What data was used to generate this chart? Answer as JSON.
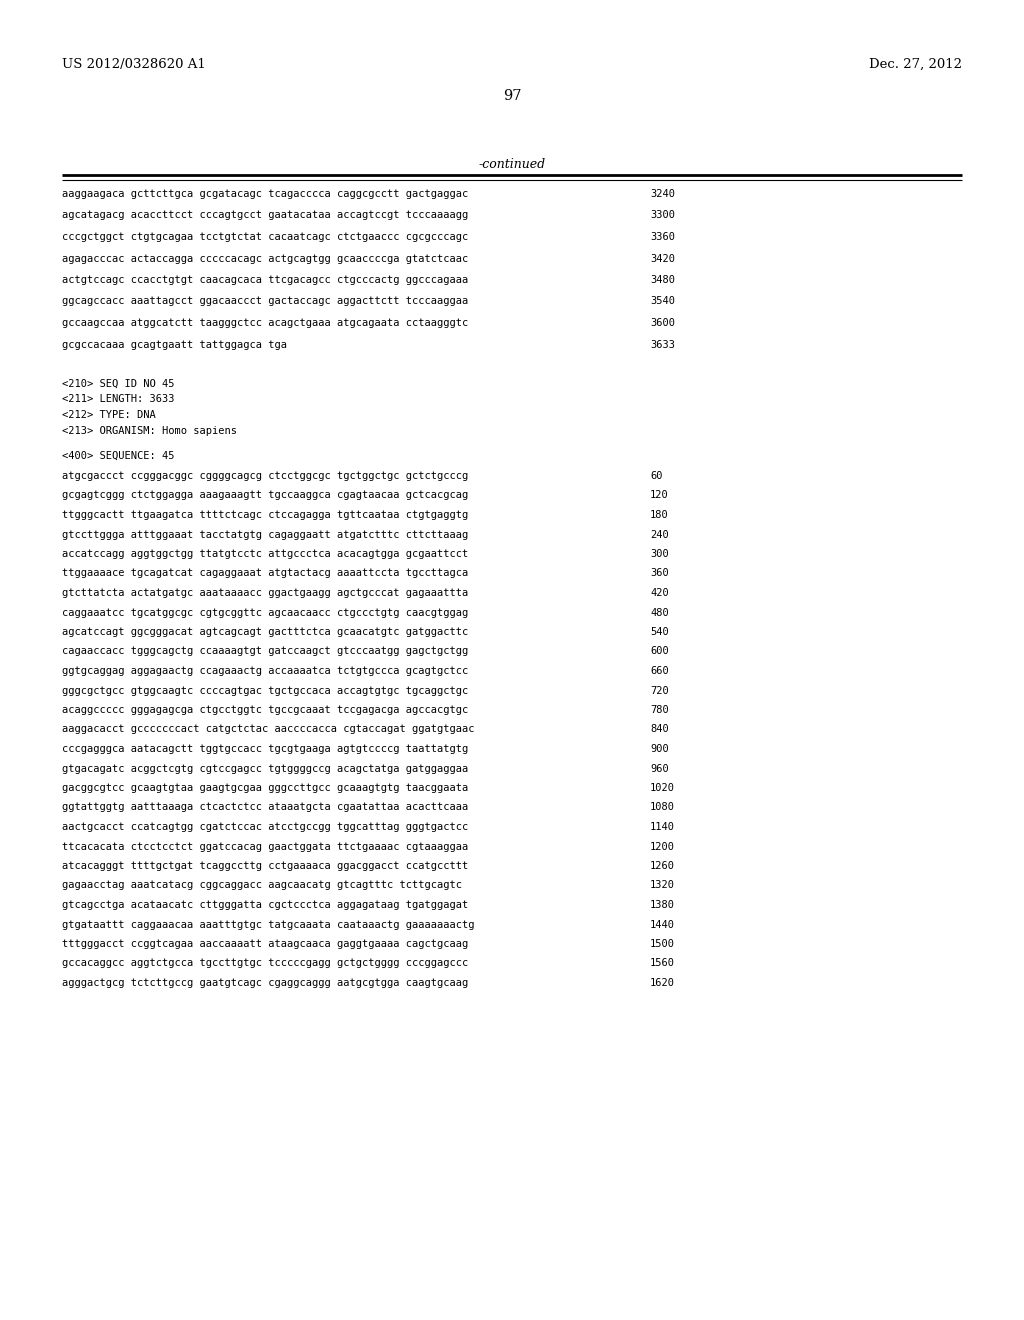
{
  "header_left": "US 2012/0328620 A1",
  "header_right": "Dec. 27, 2012",
  "page_number": "97",
  "continued_label": "-continued",
  "background_color": "#ffffff",
  "text_color": "#000000",
  "mono_font_size": 7.5,
  "header_font_size": 9.5,
  "page_num_font_size": 10.5,
  "section_top": [
    {
      "text": "aaggaagaca gcttcttgca gcgatacagc tcagacccca caggcgcctt gactgaggac",
      "num": "3240"
    },
    {
      "text": "agcatagacg acaccttcct cccagtgcct gaatacataa accagtccgt tcccaaaagg",
      "num": "3300"
    },
    {
      "text": "cccgctggct ctgtgcagaa tcctgtctat cacaatcagc ctctgaaccc cgcgcccagc",
      "num": "3360"
    },
    {
      "text": "agagacccac actaccagga cccccacagc actgcagtgg gcaaccccga gtatctcaac",
      "num": "3420"
    },
    {
      "text": "actgtccagc ccacctgtgt caacagcaca ttcgacagcc ctgcccactg ggcccagaaa",
      "num": "3480"
    },
    {
      "text": "ggcagccacc aaattagcct ggacaaccct gactaccagc aggacttctt tcccaaggaa",
      "num": "3540"
    },
    {
      "text": "gccaagccaa atggcatctt taagggctcc acagctgaaa atgcagaata cctaagggtc",
      "num": "3600"
    },
    {
      "text": "gcgccacaaa gcagtgaatt tattggagca tga",
      "num": "3633"
    }
  ],
  "meta_lines": [
    "<210> SEQ ID NO 45",
    "<211> LENGTH: 3633",
    "<212> TYPE: DNA",
    "<213> ORGANISM: Homo sapiens"
  ],
  "sequence_label": "<400> SEQUENCE: 45",
  "sequence_lines": [
    {
      "text": "atgcgaccct ccgggacggc cggggcagcg ctcctggcgc tgctggctgc gctctgcccg",
      "num": "60"
    },
    {
      "text": "gcgagtcggg ctctggagga aaagaaagtt tgccaaggca cgagtaacaa gctcacgcag",
      "num": "120"
    },
    {
      "text": "ttgggcactt ttgaagatca ttttctcagc ctccagagga tgttcaataa ctgtgaggtg",
      "num": "180"
    },
    {
      "text": "gtccttggga atttggaaat tacctatgtg cagaggaatt atgatctttc cttcttaaag",
      "num": "240"
    },
    {
      "text": "accatccagg aggtggctgg ttatgtcctc attgccctca acacagtgga gcgaattcct",
      "num": "300"
    },
    {
      "text": "ttggaaaace tgcagatcat cagaggaaat atgtactacg aaaattccta tgccttagca",
      "num": "360"
    },
    {
      "text": "gtcttatcta actatgatgc aaataaaacc ggactgaagg agctgcccat gagaaattta",
      "num": "420"
    },
    {
      "text": "caggaaatcc tgcatggcgc cgtgcggttc agcaacaacc ctgccctgtg caacgtggag",
      "num": "480"
    },
    {
      "text": "agcatccagt ggcgggacat agtcagcagt gactttctca gcaacatgtc gatggacttc",
      "num": "540"
    },
    {
      "text": "cagaaccacc tgggcagctg ccaaaagtgt gatccaagct gtcccaatgg gagctgctgg",
      "num": "600"
    },
    {
      "text": "ggtgcaggag aggagaactg ccagaaactg accaaaatca tctgtgccca gcagtgctcc",
      "num": "660"
    },
    {
      "text": "gggcgctgcc gtggcaagtc ccccagtgac tgctgccaca accagtgtgc tgcaggctgc",
      "num": "720"
    },
    {
      "text": "acaggccccc gggagagcga ctgcctggtc tgccgcaaat tccgagacga agccacgtgc",
      "num": "780"
    },
    {
      "text": "aaggacacct gcccccccact catgctctac aaccccacca cgtaccagat ggatgtgaac",
      "num": "840"
    },
    {
      "text": "cccgagggca aatacagctt tggtgccacc tgcgtgaaga agtgtccccg taattatgtg",
      "num": "900"
    },
    {
      "text": "gtgacagatc acggctcgtg cgtccgagcc tgtggggccg acagctatga gatggaggaa",
      "num": "960"
    },
    {
      "text": "gacggcgtcc gcaagtgtaa gaagtgcgaa gggccttgcc gcaaagtgtg taacggaata",
      "num": "1020"
    },
    {
      "text": "ggtattggtg aatttaaaga ctcactctcc ataaatgcta cgaatattaa acacttcaaa",
      "num": "1080"
    },
    {
      "text": "aactgcacct ccatcagtgg cgatctccac atcctgccgg tggcatttag gggtgactcc",
      "num": "1140"
    },
    {
      "text": "ttcacacata ctcctcctct ggatccacag gaactggata ttctgaaaac cgtaaaggaa",
      "num": "1200"
    },
    {
      "text": "atcacagggt ttttgctgat tcaggccttg cctgaaaaca ggacggacct ccatgccttt",
      "num": "1260"
    },
    {
      "text": "gagaacctag aaatcatacg cggcaggacc aagcaacatg gtcagtttc tcttgcagtc",
      "num": "1320"
    },
    {
      "text": "gtcagcctga acataacatc cttgggatta cgctccctca aggagataag tgatggagat",
      "num": "1380"
    },
    {
      "text": "gtgataattt caggaaacaa aaatttgtgc tatgcaaata caataaactg gaaaaaaactg",
      "num": "1440"
    },
    {
      "text": "tttgggacct ccggtcagaa aaccaaaatt ataagcaaca gaggtgaaaa cagctgcaag",
      "num": "1500"
    },
    {
      "text": "gccacaggcc aggtctgcca tgccttgtgc tcccccgagg gctgctgggg cccggagccc",
      "num": "1560"
    },
    {
      "text": "agggactgcg tctcttgccg gaatgtcagc cgaggcaggg aatgcgtgga caagtgcaag",
      "num": "1620"
    }
  ]
}
